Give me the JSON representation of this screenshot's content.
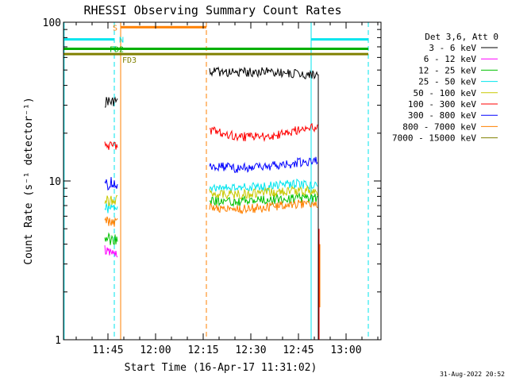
{
  "chart_data": {
    "type": "line",
    "title": "RHESSI Observing Summary Count Rates",
    "xlabel": "Start Time (16-Apr-17 11:31:02)",
    "ylabel": "Count Rate (s⁻¹ detector⁻¹)",
    "y_scale": "log",
    "ylim": [
      1,
      100
    ],
    "xlim": [
      "11:31",
      "13:11"
    ],
    "x_ticks": [
      "11:45",
      "12:00",
      "12:15",
      "12:30",
      "12:45",
      "13:00"
    ],
    "y_ticks": [
      "1",
      "10",
      "100"
    ],
    "legend_title": "Det 3,6, Att 0",
    "legend_position": "right",
    "footer": "31-Aug-2022 20:52",
    "flags": [
      {
        "label": "S",
        "color": "#ff8000",
        "start": "11:49",
        "end": "12:16",
        "level": 93
      },
      {
        "label": "N",
        "color": "#00e5ee",
        "start": "11:31",
        "end": "11:47",
        "level": 78
      },
      {
        "label": "N",
        "color": "#00e5ee",
        "start": "12:49",
        "end": "13:07",
        "level": 78
      },
      {
        "label": "FD2",
        "color": "#00b000",
        "start": "11:31",
        "end": "13:07",
        "level": 68
      },
      {
        "label": "FD3",
        "color": "#808000",
        "start": "11:31",
        "end": "13:07",
        "level": 63
      }
    ],
    "vertical_markers": [
      {
        "time": "11:31.2",
        "color": "#00e5ee",
        "style": "solid"
      },
      {
        "time": "11:47",
        "color": "#00e5ee",
        "style": "dashed"
      },
      {
        "time": "11:49",
        "color": "#ff8000",
        "style": "solid"
      },
      {
        "time": "12:16",
        "color": "#ff8000",
        "style": "dashed"
      },
      {
        "time": "12:49",
        "color": "#00e5ee",
        "style": "solid"
      },
      {
        "time": "13:07",
        "color": "#00e5ee",
        "style": "dashed"
      }
    ],
    "series": [
      {
        "name": "3 - 6 keV",
        "color": "#000000",
        "segments": [
          {
            "x": [
              "11:44",
              "11:45",
              "11:46",
              "11:47",
              "11:48"
            ],
            "y": [
              31,
              32,
              31,
              32,
              31
            ]
          },
          {
            "x": [
              "12:17",
              "12:25",
              "12:35",
              "12:45",
              "12:51"
            ],
            "y": [
              49,
              48,
              49,
              47,
              47
            ]
          }
        ]
      },
      {
        "name": "6 - 12 keV",
        "color": "#ff00ff",
        "segments": [
          {
            "x": [
              "11:44",
              "11:45",
              "11:46",
              "11:47",
              "11:48"
            ],
            "y": [
              3.7,
              3.5,
              3.6,
              3.4,
              3.5
            ]
          }
        ]
      },
      {
        "name": "12 - 25 keV",
        "color": "#00c000",
        "segments": [
          {
            "x": [
              "11:44",
              "11:45",
              "11:46",
              "11:47",
              "11:48"
            ],
            "y": [
              4.3,
              4.4,
              4.2,
              4.3,
              4.2
            ]
          },
          {
            "x": [
              "12:17",
              "12:25",
              "12:35",
              "12:45",
              "12:51"
            ],
            "y": [
              7.6,
              7.4,
              7.6,
              7.8,
              7.8
            ]
          }
        ]
      },
      {
        "name": "25 - 50 keV",
        "color": "#00e5ee",
        "segments": [
          {
            "x": [
              "11:44",
              "11:45",
              "11:46",
              "11:47",
              "11:48"
            ],
            "y": [
              6.8,
              6.7,
              6.9,
              6.8,
              6.7
            ]
          },
          {
            "x": [
              "12:17",
              "12:25",
              "12:35",
              "12:45",
              "12:51"
            ],
            "y": [
              9.2,
              9.0,
              9.2,
              9.6,
              9.4
            ]
          }
        ]
      },
      {
        "name": "50 - 100 keV",
        "color": "#c8c800",
        "segments": [
          {
            "x": [
              "11:44",
              "11:45",
              "11:46",
              "11:47",
              "11:48"
            ],
            "y": [
              7.6,
              7.5,
              7.7,
              7.6,
              7.5
            ]
          },
          {
            "x": [
              "12:17",
              "12:25",
              "12:35",
              "12:45",
              "12:51"
            ],
            "y": [
              8.4,
              8.2,
              8.4,
              8.7,
              8.6
            ]
          }
        ]
      },
      {
        "name": "100 - 300 keV",
        "color": "#ff0000",
        "segments": [
          {
            "x": [
              "11:44",
              "11:45",
              "11:46",
              "11:47",
              "11:48"
            ],
            "y": [
              16.5,
              17,
              16.5,
              17,
              17
            ]
          },
          {
            "x": [
              "12:17",
              "12:25",
              "12:35",
              "12:45",
              "12:51"
            ],
            "y": [
              21,
              19,
              19,
              21,
              22
            ]
          }
        ]
      },
      {
        "name": "300 - 800 keV",
        "color": "#0000ff",
        "segments": [
          {
            "x": [
              "11:44",
              "11:45",
              "11:46",
              "11:47",
              "11:48"
            ],
            "y": [
              9.6,
              9.4,
              9.8,
              9.5,
              9.6
            ]
          },
          {
            "x": [
              "12:17",
              "12:25",
              "12:35",
              "12:45",
              "12:51"
            ],
            "y": [
              12.5,
              12,
              12.3,
              13,
              13.3
            ]
          }
        ]
      },
      {
        "name": "800 - 7000 keV",
        "color": "#ff8000",
        "segments": [
          {
            "x": [
              "11:44",
              "11:45",
              "11:46",
              "11:47",
              "11:48"
            ],
            "y": [
              5.7,
              5.5,
              5.6,
              5.5,
              5.6
            ]
          },
          {
            "x": [
              "12:17",
              "12:25",
              "12:35",
              "12:45",
              "12:51"
            ],
            "y": [
              6.9,
              6.6,
              6.8,
              7.2,
              7.2
            ]
          }
        ]
      },
      {
        "name": "7000 - 15000 keV",
        "color": "#808000",
        "segments": []
      }
    ]
  }
}
